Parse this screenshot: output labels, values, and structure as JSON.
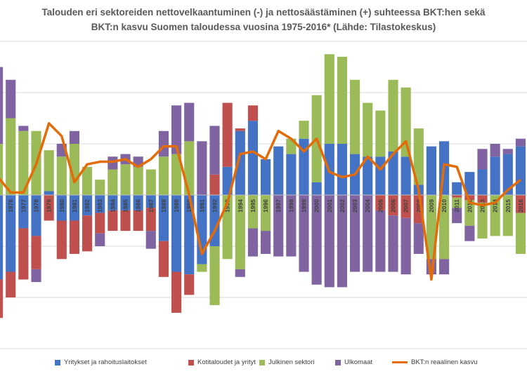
{
  "chart_data": {
    "type": "bar",
    "title_line1": "Talouden eri sektoreiden nettovelkaantuminen (-) ja nettosäästäminen (+) suhteessa BKT:hen sekä",
    "title_line2": "BKT:n kasvu Suomen taloudessa vuosina 1975-2016* (Lähde: Tilastokeskus)",
    "categories": [
      "1975",
      "1976",
      "1977",
      "1978",
      "1979",
      "1980",
      "1981",
      "1982",
      "1983",
      "1984",
      "1985",
      "1986",
      "1987",
      "1988",
      "1989",
      "1990",
      "1991",
      "1992",
      "1993",
      "1994",
      "1995",
      "1996",
      "1997",
      "1998",
      "1999",
      "2000",
      "2001",
      "2002",
      "2003",
      "2004",
      "2005",
      "2006",
      "2007",
      "2008",
      "2009",
      "2010",
      "2011",
      "2012",
      "2013",
      "2014",
      "2015",
      "2016"
    ],
    "stacked": true,
    "ylim": [
      -6,
      6
    ],
    "grid": true,
    "legend_position": "bottom",
    "series": [
      {
        "name": "Yritykset ja rahoituslaitokset",
        "color": "#4472C4",
        "values": [
          -3.3,
          -3.0,
          -1.3,
          -1.6,
          0.15,
          -1.0,
          -1.0,
          -0.8,
          -0.7,
          -0.6,
          -0.6,
          -0.6,
          -0.5,
          -1.8,
          -3.0,
          -3.1,
          -2.7,
          -2.0,
          1.1,
          2.5,
          2.9,
          1.4,
          1.9,
          1.6,
          2.2,
          0.5,
          2.0,
          2.0,
          1.6,
          1.5,
          1.5,
          1.7,
          1.5,
          0.4,
          1.9,
          2.1,
          0.5,
          0.9,
          1.0,
          1.5,
          1.6,
          1.9
        ]
      },
      {
        "name": "Kotitaloudet ja yrityt",
        "color": "#C0504D",
        "values": [
          -1.5,
          -1.0,
          -2.0,
          -1.3,
          -1.0,
          -1.5,
          -1.3,
          -1.4,
          -0.8,
          -0.8,
          -0.8,
          -0.8,
          -0.9,
          -1.4,
          -1.6,
          -0.8,
          0.0,
          0.8,
          2.5,
          0.1,
          0.6,
          0.0,
          0.0,
          0.0,
          0.0,
          0.0,
          0.0,
          0.0,
          0.0,
          0.0,
          -0.6,
          -0.8,
          -0.9,
          -1.1,
          0.0,
          0.0,
          -0.1,
          -0.2,
          -0.3,
          0.0,
          0.0,
          -0.7
        ]
      },
      {
        "name": "Julkinen sektori",
        "color": "#9BBB59",
        "values": [
          2.0,
          3.0,
          2.5,
          2.5,
          1.6,
          1.5,
          2.0,
          1.1,
          0.6,
          1.0,
          1.2,
          1.1,
          1.0,
          1.5,
          1.6,
          2.1,
          -0.3,
          -2.3,
          -2.5,
          -2.9,
          -1.3,
          -1.4,
          0.0,
          0.6,
          0.7,
          3.4,
          3.5,
          3.4,
          2.9,
          2.1,
          1.8,
          2.8,
          2.7,
          2.2,
          -2.5,
          -2.5,
          -0.4,
          -1.0,
          -1.4,
          -1.6,
          -1.6,
          -1.6
        ]
      },
      {
        "name": "Ulkomaat",
        "color": "#8064A2",
        "values": [
          3.0,
          1.5,
          0.2,
          -0.5,
          0.0,
          0.5,
          0.5,
          0.0,
          -0.5,
          0.5,
          0.4,
          0.4,
          -0.7,
          1.0,
          1.9,
          1.5,
          2.1,
          1.9,
          0.0,
          -0.3,
          -1.1,
          -0.9,
          -2.4,
          -2.4,
          -3.0,
          -3.5,
          -3.6,
          -3.6,
          -3.0,
          -3.0,
          -2.4,
          -2.2,
          -2.2,
          -1.2,
          -0.6,
          -0.6,
          -0.6,
          -0.6,
          0.8,
          0.5,
          0.2,
          0.3
        ]
      },
      {
        "name": "BKT:n reaalinen kasvu",
        "type": "line",
        "color": "#E36C09",
        "values": [
          0.7,
          0.1,
          0.1,
          1.2,
          2.8,
          2.3,
          0.5,
          1.2,
          1.3,
          1.3,
          1.4,
          1.1,
          1.4,
          1.9,
          1.9,
          0.0,
          -2.3,
          -1.4,
          -0.3,
          1.6,
          1.7,
          1.4,
          2.5,
          2.2,
          1.7,
          2.2,
          0.9,
          0.7,
          0.8,
          1.5,
          1.0,
          1.6,
          2.1,
          0.2,
          -3.3,
          1.2,
          1.1,
          -0.3,
          -0.4,
          -0.3,
          0.2,
          0.6
        ]
      }
    ]
  }
}
